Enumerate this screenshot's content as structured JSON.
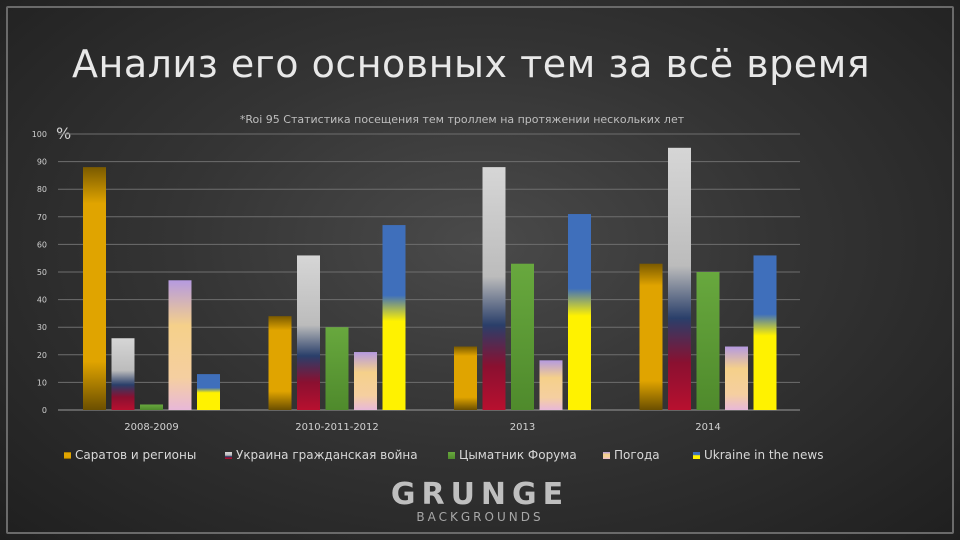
{
  "slide": {
    "title": "Анализ его основных тем за всё время",
    "logo_main": "GRUNGE",
    "logo_sub": "BACKGROUNDS"
  },
  "chart_data": {
    "type": "bar",
    "title": "*Roi 95 Статистика посещения тем троллем на протяжении нескольких лет",
    "ylabel": "%",
    "ylim": [
      0,
      100
    ],
    "yticks": [
      0,
      10,
      20,
      30,
      40,
      50,
      60,
      70,
      80,
      90,
      100
    ],
    "grid": true,
    "legend_position": "bottom",
    "categories": [
      "2008-2009",
      "2010-2011-2012",
      "2013",
      "2014"
    ],
    "series": [
      {
        "name": "Саратов и регионы",
        "values": [
          88,
          34,
          23,
          53
        ],
        "color": "#d9a000"
      },
      {
        "name": "Украина гражданская война",
        "values": [
          26,
          56,
          88,
          95
        ],
        "color": "#c8c8c8"
      },
      {
        "name": "Цыматник Форума",
        "values": [
          2,
          30,
          53,
          50
        ],
        "color": "#6aa842"
      },
      {
        "name": "Погода",
        "values": [
          47,
          21,
          18,
          23
        ],
        "color": "#e6b8d8"
      },
      {
        "name": "Ukraine in the news",
        "values": [
          13,
          67,
          71,
          56
        ],
        "color": "#3d6bb3"
      }
    ]
  }
}
